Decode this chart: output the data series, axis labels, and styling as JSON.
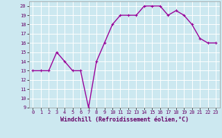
{
  "x": [
    0,
    1,
    2,
    3,
    4,
    5,
    6,
    7,
    8,
    9,
    10,
    11,
    12,
    13,
    14,
    15,
    16,
    17,
    18,
    19,
    20,
    21,
    22,
    23
  ],
  "y": [
    13,
    13,
    13,
    15,
    14,
    13,
    13,
    9,
    14,
    16,
    18,
    19,
    19,
    19,
    20,
    20,
    20,
    19,
    19.5,
    19,
    18,
    16.5,
    16,
    16
  ],
  "line_color": "#990099",
  "marker": "+",
  "marker_size": 3,
  "linewidth": 1.0,
  "xlim": [
    -0.5,
    23.5
  ],
  "ylim": [
    9,
    20.5
  ],
  "yticks": [
    9,
    10,
    11,
    12,
    13,
    14,
    15,
    16,
    17,
    18,
    19,
    20
  ],
  "xticks": [
    0,
    1,
    2,
    3,
    4,
    5,
    6,
    7,
    8,
    9,
    10,
    11,
    12,
    13,
    14,
    15,
    16,
    17,
    18,
    19,
    20,
    21,
    22,
    23
  ],
  "xlabel": "Windchill (Refroidissement éolien,°C)",
  "background_color": "#cce8f0",
  "grid_color": "#ffffff",
  "tick_labelsize": 5.0,
  "xlabel_fontsize": 6.0
}
